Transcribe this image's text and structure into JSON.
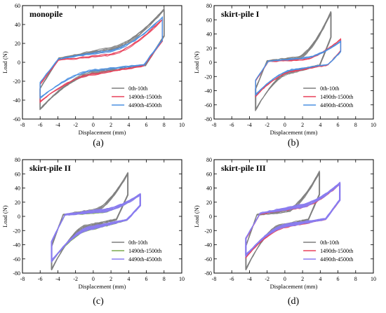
{
  "chart_data": [
    {
      "type": "line",
      "title": "monopile",
      "caption": "(a)",
      "xlabel": "Displacement (mm)",
      "ylabel": "Load (N)",
      "xlim": [
        -8,
        10
      ],
      "ylim": [
        -60,
        60
      ],
      "xticks": [
        -8,
        -6,
        -4,
        -2,
        0,
        2,
        4,
        6,
        8,
        10
      ],
      "yticks": [
        -60,
        -40,
        -20,
        0,
        20,
        40,
        60
      ],
      "legend_position": "bottom-right",
      "series": [
        {
          "name": "0th-10th",
          "color": "#7f7f7f",
          "loop": {
            "x_min": -6.0,
            "x_max": 8.0,
            "y_min": -50,
            "y_max": 57,
            "pinch_upper": 14,
            "pinch_lower": -10,
            "tip_upper": 57,
            "tip_lower": -50,
            "cycles": 10,
            "spread": 4
          }
        },
        {
          "name": "1490th-1500th",
          "color": "#e8405a",
          "loop": {
            "x_min": -6.0,
            "x_max": 7.8,
            "y_min": -42,
            "y_max": 46,
            "pinch_upper": 8,
            "pinch_lower": -12,
            "tip_upper": 46,
            "tip_lower": -42,
            "cycles": 3,
            "spread": 2
          }
        },
        {
          "name": "4490th-4500th",
          "color": "#4a90e2",
          "loop": {
            "x_min": -6.0,
            "x_max": 7.8,
            "y_min": -38,
            "y_max": 48,
            "pinch_upper": 12,
            "pinch_lower": -8,
            "tip_upper": 48,
            "tip_lower": -38,
            "cycles": 3,
            "spread": 2
          }
        }
      ]
    },
    {
      "type": "line",
      "title": "skirt-pile I",
      "caption": "(b)",
      "xlabel": "Displacement (mm)",
      "ylabel": "Load (N)",
      "xlim": [
        -8,
        10
      ],
      "ylim": [
        -80,
        80
      ],
      "xticks": [
        -8,
        -6,
        -4,
        -2,
        0,
        2,
        4,
        6,
        8,
        10
      ],
      "yticks": [
        -80,
        -60,
        -40,
        -20,
        0,
        20,
        40,
        60,
        80
      ],
      "legend_position": "bottom-right",
      "series": [
        {
          "name": "0th-10th",
          "color": "#7f7f7f",
          "loop": {
            "x_min": -3.3,
            "x_max": 5.2,
            "y_min": -68,
            "y_max": 72,
            "pinch_upper": 6,
            "pinch_lower": -14,
            "tip_upper": 72,
            "tip_lower": -68,
            "cycles": 10,
            "spread": 5
          }
        },
        {
          "name": "1490th-1500th",
          "color": "#e8405a",
          "loop": {
            "x_min": -3.3,
            "x_max": 6.3,
            "y_min": -48,
            "y_max": 33,
            "pinch_upper": 4,
            "pinch_lower": -12,
            "tip_upper": 33,
            "tip_lower": -48,
            "cycles": 3,
            "spread": 2
          }
        },
        {
          "name": "4490th-4500th",
          "color": "#4a90e2",
          "loop": {
            "x_min": -3.3,
            "x_max": 6.3,
            "y_min": -46,
            "y_max": 30,
            "pinch_upper": 6,
            "pinch_lower": -10,
            "tip_upper": 30,
            "tip_lower": -46,
            "cycles": 3,
            "spread": 2
          }
        }
      ]
    },
    {
      "type": "line",
      "title": "skirt-pile II",
      "caption": "(c)",
      "xlabel": "Displacement (mm)",
      "ylabel": "Load (N)",
      "xlim": [
        -8,
        10
      ],
      "ylim": [
        -80,
        80
      ],
      "xticks": [
        -8,
        -6,
        -4,
        -2,
        0,
        2,
        4,
        6,
        8,
        10
      ],
      "yticks": [
        -80,
        -60,
        -40,
        -20,
        0,
        20,
        40,
        60,
        80
      ],
      "legend_position": "bottom-right",
      "series": [
        {
          "name": "0th-10th",
          "color": "#7f7f7f",
          "loop": {
            "x_min": -4.7,
            "x_max": 3.9,
            "y_min": -76,
            "y_max": 62,
            "pinch_upper": 8,
            "pinch_lower": -14,
            "tip_upper": 62,
            "tip_lower": -76,
            "cycles": 10,
            "spread": 5
          }
        },
        {
          "name": "1490th-1500th",
          "color": "#7ba84f",
          "loop": {
            "x_min": -4.7,
            "x_max": 5.3,
            "y_min": -64,
            "y_max": 32,
            "pinch_upper": 6,
            "pinch_lower": -18,
            "tip_upper": 32,
            "tip_lower": -64,
            "cycles": 3,
            "spread": 2
          }
        },
        {
          "name": "4490th-4500th",
          "color": "#8a7cf0",
          "loop": {
            "x_min": -4.7,
            "x_max": 5.3,
            "y_min": -64,
            "y_max": 32,
            "pinch_upper": 8,
            "pinch_lower": -16,
            "tip_upper": 32,
            "tip_lower": -64,
            "cycles": 10,
            "spread": 5
          }
        }
      ]
    },
    {
      "type": "line",
      "title": "skirt-pile III",
      "caption": "(d)",
      "xlabel": "Displacement (mm)",
      "ylabel": "Load (N)",
      "xlim": [
        -8,
        10
      ],
      "ylim": [
        -80,
        80
      ],
      "xticks": [
        -8,
        -6,
        -4,
        -2,
        0,
        2,
        4,
        6,
        8,
        10
      ],
      "yticks": [
        -80,
        -60,
        -40,
        -20,
        0,
        20,
        40,
        60,
        80
      ],
      "legend_position": "bottom-right",
      "series": [
        {
          "name": "0th-10th",
          "color": "#7f7f7f",
          "loop": {
            "x_min": -4.4,
            "x_max": 3.9,
            "y_min": -76,
            "y_max": 64,
            "pinch_upper": 8,
            "pinch_lower": -14,
            "tip_upper": 64,
            "tip_lower": -76,
            "cycles": 10,
            "spread": 5
          }
        },
        {
          "name": "1490th-1500th",
          "color": "#e8405a",
          "loop": {
            "x_min": -4.4,
            "x_max": 6.2,
            "y_min": -58,
            "y_max": 46,
            "pinch_upper": 12,
            "pinch_lower": -14,
            "tip_upper": 46,
            "tip_lower": -58,
            "cycles": 3,
            "spread": 2
          }
        },
        {
          "name": "4490th-4500th",
          "color": "#8a7cf0",
          "loop": {
            "x_min": -4.4,
            "x_max": 6.2,
            "y_min": -56,
            "y_max": 48,
            "pinch_upper": 14,
            "pinch_lower": -12,
            "tip_upper": 48,
            "tip_lower": -56,
            "cycles": 10,
            "spread": 5
          }
        }
      ]
    }
  ]
}
